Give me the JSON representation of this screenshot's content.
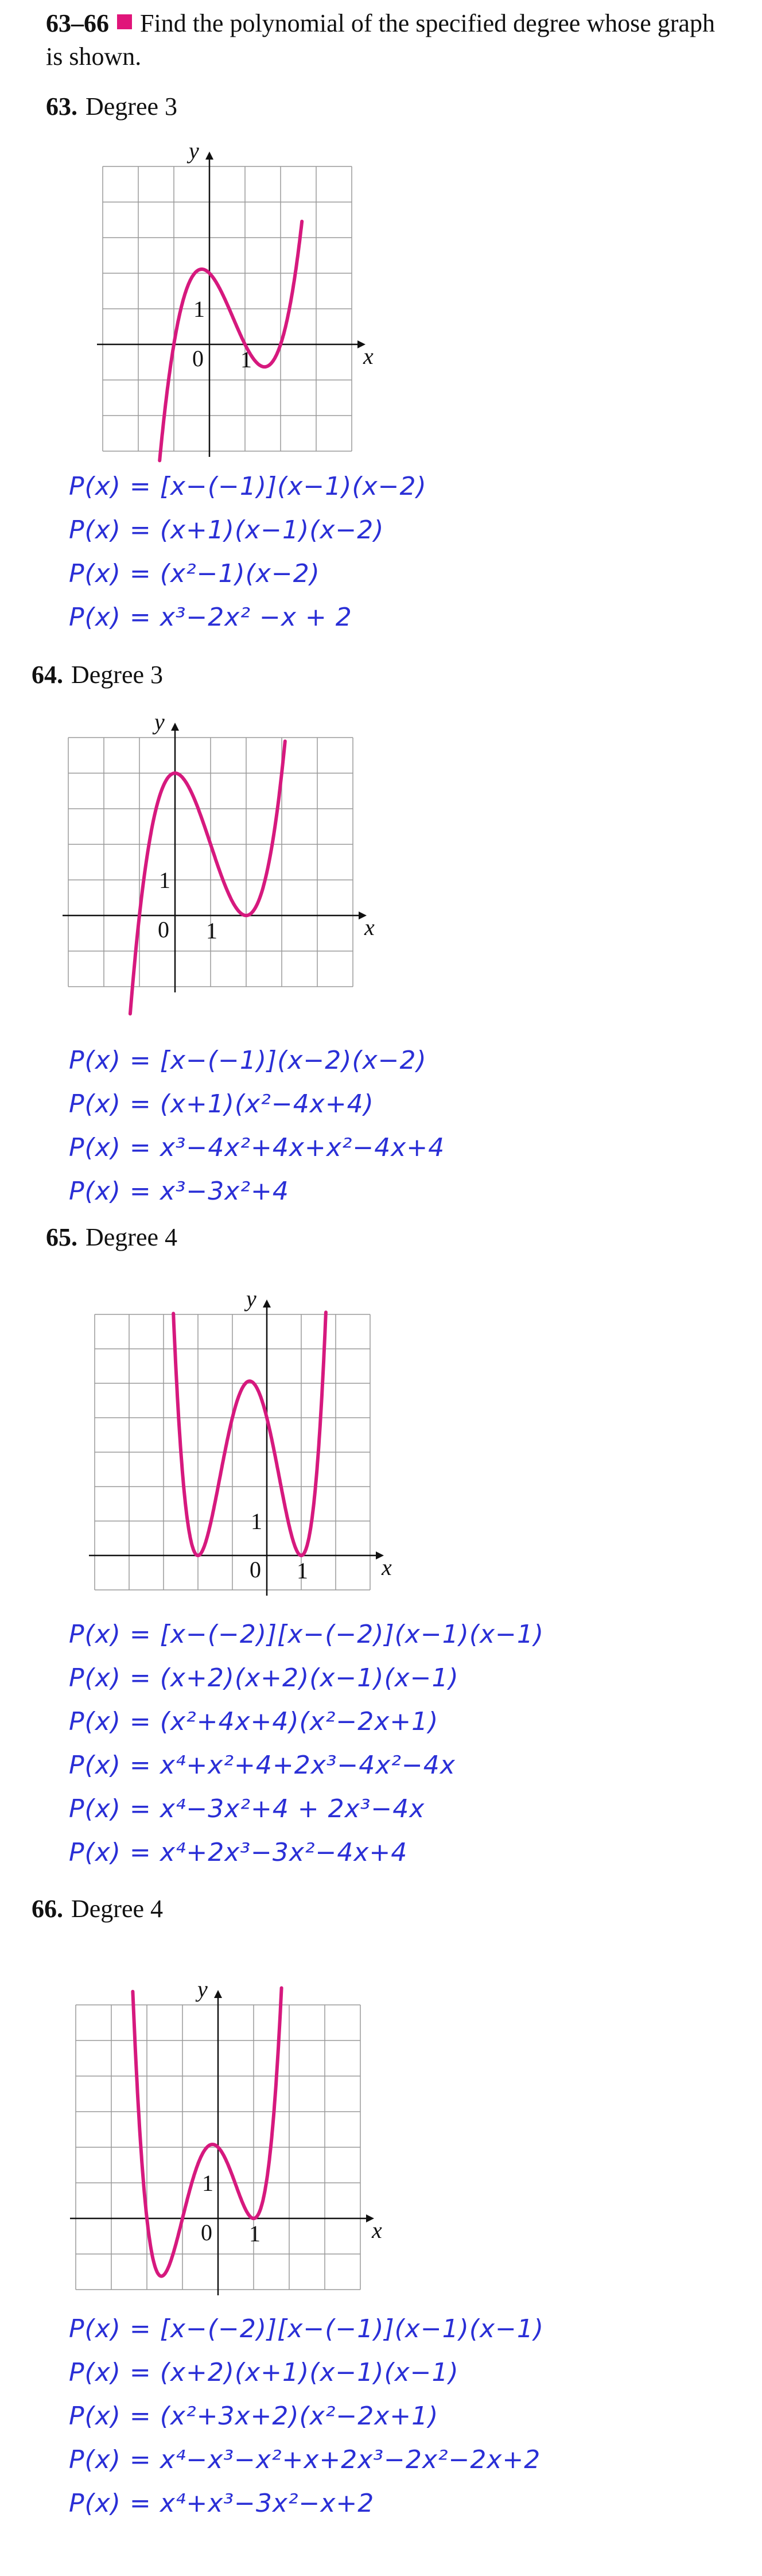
{
  "header": {
    "number": "63–66",
    "text": "Find the polynomial of the specified degree whose graph is shown."
  },
  "problems": [
    {
      "number": "63.",
      "title": "Degree 3",
      "axis": {
        "x_label": "x",
        "y_label": "y",
        "origin_label": "0",
        "x_tick_label": "1",
        "y_tick_label": "1"
      },
      "polynomial_degree": 3,
      "work": [
        "P(x) = [x−(−1)](x−1)(x−2)",
        "P(x) = (x+1)(x−1)(x−2)",
        "P(x) = (x²−1)(x−2)",
        "P(x) = x³−2x² −x + 2"
      ]
    },
    {
      "number": "64.",
      "title": "Degree 3",
      "axis": {
        "x_label": "x",
        "y_label": "y",
        "origin_label": "0",
        "x_tick_label": "1",
        "y_tick_label": "1"
      },
      "polynomial_degree": 3,
      "work": [
        "P(x) = [x−(−1)](x−2)(x−2)",
        "P(x) = (x+1)(x²−4x+4)",
        "P(x) = x³−4x²+4x+x²−4x+4",
        "P(x) = x³−3x²+4"
      ]
    },
    {
      "number": "65.",
      "title": "Degree 4",
      "axis": {
        "x_label": "x",
        "y_label": "y",
        "origin_label": "0",
        "x_tick_label": "1",
        "y_tick_label": "1"
      },
      "polynomial_degree": 4,
      "work": [
        "P(x) = [x−(−2)][x−(−2)](x−1)(x−1)",
        "P(x) = (x+2)(x+2)(x−1)(x−1)",
        "P(x) = (x²+4x+4)(x²−2x+1)",
        "P(x) = x⁴+x²+4+2x³−4x²−4x",
        "P(x) = x⁴−3x²+4 + 2x³−4x",
        "P(x) = x⁴+2x³−3x²−4x+4"
      ]
    },
    {
      "number": "66.",
      "title": "Degree 4",
      "axis": {
        "x_label": "x",
        "y_label": "y",
        "origin_label": "0",
        "x_tick_label": "1",
        "y_tick_label": "1"
      },
      "polynomial_degree": 4,
      "work": [
        "P(x) = [x−(−2)][x−(−1)](x−1)(x−1)",
        "P(x) = (x+2)(x+1)(x−1)(x−1)",
        "P(x) = (x²+3x+2)(x²−2x+1)",
        "P(x) = x⁴−x³−x²+x+2x³−2x²−2x+2",
        "P(x) = x⁴+x³−3x²−x+2"
      ]
    }
  ],
  "colors": {
    "curve": "#d6197e",
    "axis": "#111111",
    "grid": "#9a9a9a",
    "handwriting": "#2a2fd6",
    "accent_square": "#e0157a"
  }
}
